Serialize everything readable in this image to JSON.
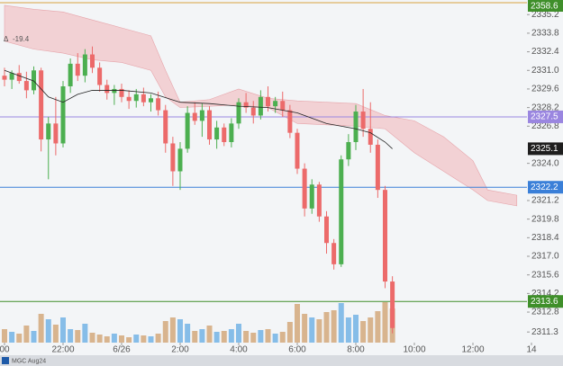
{
  "chart_data": {
    "type": "candlestick",
    "symbol": "MGC Aug24",
    "change": {
      "symbol": "Δ",
      "value": -19.4,
      "color": "#e05050"
    },
    "xlim": [
      19.846,
      38.0
    ],
    "ylim": [
      2310.5,
      2336.3
    ],
    "xticks": [
      {
        "value": 20,
        "label": "00"
      },
      {
        "value": 22,
        "label": "22:00"
      },
      {
        "value": 24,
        "label": "6/26"
      },
      {
        "value": 26,
        "label": "2:00"
      },
      {
        "value": 28,
        "label": "4:00"
      },
      {
        "value": 30,
        "label": "6:00"
      },
      {
        "value": 32,
        "label": "8:00"
      },
      {
        "value": 34,
        "label": "10:00"
      },
      {
        "value": 36,
        "label": "12:00"
      },
      {
        "value": 38,
        "label": "14"
      }
    ],
    "yticks": [
      2335.2,
      2333.8,
      2332.4,
      {
        "value": 2331,
        "label": "2331.0"
      },
      2329.6,
      2328.2,
      2326.8,
      {
        "value": 2324,
        "label": "2324.0"
      },
      2321.2,
      2319.8,
      2318.4,
      {
        "value": 2317,
        "label": "2317.0"
      },
      2315.6,
      2314.2,
      2312.8,
      2311.3
    ],
    "up_color": "#4caf50",
    "down_color": "#ec6a6a",
    "volume_up_color": "#86bde8",
    "volume_down_color": "#d8b48e",
    "x": [
      20,
      20.25,
      20.5,
      20.75,
      21,
      21.25,
      21.5,
      21.75,
      22,
      22.25,
      22.5,
      22.75,
      23,
      23.25,
      23.5,
      23.75,
      24,
      24.25,
      24.5,
      24.75,
      25,
      25.25,
      25.5,
      25.75,
      26,
      26.25,
      26.5,
      26.75,
      27,
      27.25,
      27.5,
      27.75,
      28,
      28.25,
      28.5,
      28.75,
      29,
      29.25,
      29.5,
      29.75,
      30,
      30.25,
      30.5,
      30.75,
      31,
      31.25,
      31.5,
      31.75,
      32,
      32.25,
      32.5,
      32.75,
      33,
      33.25
    ],
    "open": [
      2330.6,
      2330.3,
      2330.8,
      2330.2,
      2329.5,
      2331.0,
      2325.8,
      2327.0,
      2325.5,
      2329.8,
      2331.5,
      2330.6,
      2332.2,
      2331.2,
      2329.9,
      2329.3,
      2329.6,
      2329.0,
      2328.7,
      2329.2,
      2328.6,
      2328.9,
      2328.0,
      2325.5,
      2323.4,
      2325.1,
      2327.8,
      2327.2,
      2328.0,
      2325.8,
      2326.7,
      2325.6,
      2327.0,
      2328.6,
      2328.2,
      2327.6,
      2329.0,
      2328.3,
      2328.7,
      2328.0,
      2326.3,
      2323.6,
      2320.6,
      2322.4,
      2320.0,
      2318.0,
      2316.4,
      2324.3,
      2325.6,
      2327.9,
      2326.6,
      2325.4,
      2322.0,
      2315.1
    ],
    "high": [
      2331.2,
      2331.0,
      2331.4,
      2330.9,
      2331.3,
      2331.2,
      2327.5,
      2329.0,
      2330.2,
      2331.9,
      2332.3,
      2332.6,
      2332.8,
      2331.6,
      2330.3,
      2329.9,
      2330.0,
      2329.5,
      2329.6,
      2329.7,
      2329.2,
      2329.4,
      2328.4,
      2326.0,
      2325.6,
      2328.3,
      2328.6,
      2328.5,
      2328.3,
      2327.2,
      2327.0,
      2327.4,
      2328.9,
      2329.3,
      2328.7,
      2329.5,
      2329.8,
      2329.0,
      2329.4,
      2328.4,
      2326.6,
      2324.0,
      2322.8,
      2322.6,
      2320.4,
      2318.3,
      2324.6,
      2326.2,
      2328.4,
      2329.6,
      2328.6,
      2325.8,
      2322.3,
      2315.5
    ],
    "low": [
      2329.8,
      2329.6,
      2330.0,
      2328.9,
      2329.2,
      2324.9,
      2322.8,
      2324.6,
      2325.2,
      2329.3,
      2330.2,
      2330.1,
      2330.8,
      2329.4,
      2328.8,
      2328.4,
      2328.6,
      2328.1,
      2328.2,
      2328.3,
      2327.9,
      2327.6,
      2324.8,
      2322.3,
      2322.0,
      2324.8,
      2326.9,
      2326.0,
      2325.4,
      2325.1,
      2325.3,
      2325.2,
      2326.6,
      2327.8,
      2327.0,
      2327.3,
      2327.9,
      2327.8,
      2327.5,
      2325.9,
      2323.2,
      2320.0,
      2320.2,
      2319.6,
      2317.2,
      2316.0,
      2316.2,
      2323.8,
      2325.0,
      2326.0,
      2324.8,
      2321.4,
      2314.6,
      2311.2
    ],
    "close": [
      2330.3,
      2330.8,
      2330.2,
      2329.5,
      2331.0,
      2325.8,
      2327.0,
      2325.5,
      2329.8,
      2331.5,
      2330.6,
      2332.2,
      2331.2,
      2329.9,
      2329.3,
      2329.6,
      2329.0,
      2328.7,
      2329.2,
      2328.6,
      2328.9,
      2328.0,
      2325.5,
      2323.4,
      2325.1,
      2327.8,
      2327.2,
      2328.0,
      2325.8,
      2326.7,
      2325.6,
      2327.0,
      2328.6,
      2328.2,
      2327.6,
      2329.0,
      2328.3,
      2328.7,
      2328.0,
      2326.3,
      2323.6,
      2320.6,
      2322.4,
      2320.0,
      2318.0,
      2316.4,
      2324.3,
      2325.6,
      2327.9,
      2326.6,
      2325.4,
      2322.0,
      2315.1,
      2311.6
    ],
    "volume": [
      300,
      240,
      200,
      380,
      260,
      640,
      520,
      400,
      560,
      300,
      280,
      420,
      220,
      180,
      140,
      200,
      160,
      120,
      180,
      160,
      140,
      200,
      480,
      560,
      520,
      420,
      260,
      300,
      380,
      240,
      260,
      300,
      420,
      260,
      220,
      280,
      300,
      200,
      240,
      460,
      860,
      640,
      560,
      520,
      680,
      720,
      880,
      560,
      620,
      480,
      560,
      700,
      900,
      760
    ],
    "volume_lim": [
      0,
      1000
    ],
    "moving_average": {
      "color": "#222222",
      "x": [
        20,
        21,
        21.5,
        22,
        22.5,
        23,
        24,
        25,
        26,
        27,
        28,
        29,
        30,
        31,
        32,
        32.5,
        33,
        33.25
      ],
      "values": [
        2331.0,
        2330.2,
        2329.0,
        2328.6,
        2329.2,
        2329.5,
        2329.5,
        2329.3,
        2328.6,
        2328.5,
        2328.3,
        2328.2,
        2327.8,
        2327.0,
        2326.6,
        2326.3,
        2325.6,
        2325.1
      ]
    },
    "cloud": {
      "color": "#f2c4c8",
      "edge": "#e6a4aa",
      "x": [
        20,
        21,
        22,
        23,
        24,
        25,
        25.5,
        26,
        27,
        28,
        29,
        30,
        31,
        32,
        33,
        34,
        35,
        36,
        36.5,
        37.5
      ],
      "upper": [
        2335.9,
        2335.6,
        2335.4,
        2334.8,
        2334.2,
        2333.6,
        2331.0,
        2328.6,
        2328.8,
        2329.6,
        2328.9,
        2328.7,
        2328.6,
        2328.5,
        2327.6,
        2327.2,
        2326.0,
        2324.2,
        2322.0,
        2321.6
      ],
      "lower": [
        2333.2,
        2332.6,
        2332.3,
        2331.8,
        2331.6,
        2331.0,
        2329.0,
        2328.2,
        2328.3,
        2328.4,
        2328.2,
        2327.0,
        2326.9,
        2326.8,
        2326.6,
        2324.8,
        2323.4,
        2322.0,
        2321.2,
        2320.8
      ]
    },
    "top_label": {
      "label": "2358.6",
      "color": "#3f8f2a"
    },
    "levels": [
      {
        "value": 2327.5,
        "label": "2327.5",
        "color": "#9a86e0",
        "line": true
      },
      {
        "value": 2325.1,
        "label": "2325.1",
        "color": "#1e1e1e",
        "line": false
      },
      {
        "value": 2322.2,
        "label": "2322.2",
        "color": "#3a7fd8",
        "line": true
      },
      {
        "value": 2313.6,
        "label": "2313.6",
        "color": "#3f8f2a",
        "line": true
      }
    ]
  }
}
